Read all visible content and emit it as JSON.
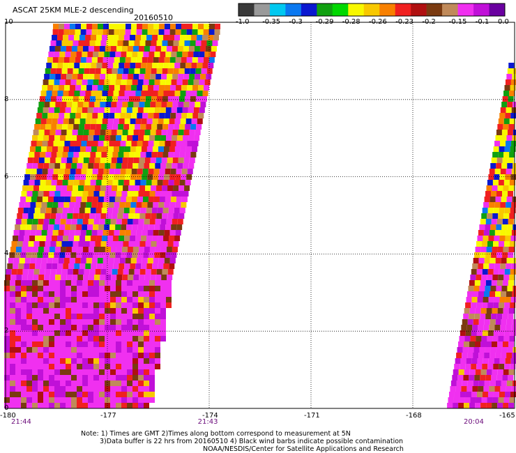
{
  "header": {
    "title": "ASCAT 25KM MLE-2 descending",
    "date": "20160510"
  },
  "colorbar": {
    "colors": [
      "#3a3a3a",
      "#9a9a9a",
      "#00c8f0",
      "#0a78f0",
      "#0a18d0",
      "#10a010",
      "#00d800",
      "#f8f800",
      "#f8c800",
      "#f88000",
      "#f02020",
      "#b01010",
      "#7a3a10",
      "#c08a5a",
      "#f030f0",
      "#c010d8",
      "#6a00a0"
    ],
    "labels": [
      "-1.0",
      "-0.35",
      "-0.3",
      "-0.29",
      "-0.28",
      "-0.26",
      "-0.23",
      "-0.2",
      "-0.15",
      "-0.1",
      "0.0"
    ]
  },
  "chart_data": {
    "type": "heatmap",
    "xlim": [
      -180,
      -165
    ],
    "ylim": [
      0,
      10
    ],
    "x_ticks": [
      "-180",
      "-177",
      "-174",
      "-171",
      "-168",
      "-165"
    ],
    "y_ticks": [
      "0",
      "2",
      "4",
      "6",
      "8",
      "10"
    ],
    "grid": true,
    "swaths": [
      {
        "time": "21:44",
        "time_lon": -180,
        "time2": "21:43",
        "time2_lon": -174.5
      },
      {
        "time": "20:04",
        "time_lon": -165.4
      }
    ]
  },
  "notes": {
    "line1": "Note: 1) Times are GMT 2)Times along bottom correspond to measurement at 5N",
    "line2": "3)Data buffer is 22 hrs from 20160510 4) Black wind barbs indicate possible contamination",
    "line3": "NOAA/NESDIS/Center for Satellite Applications and Research"
  }
}
